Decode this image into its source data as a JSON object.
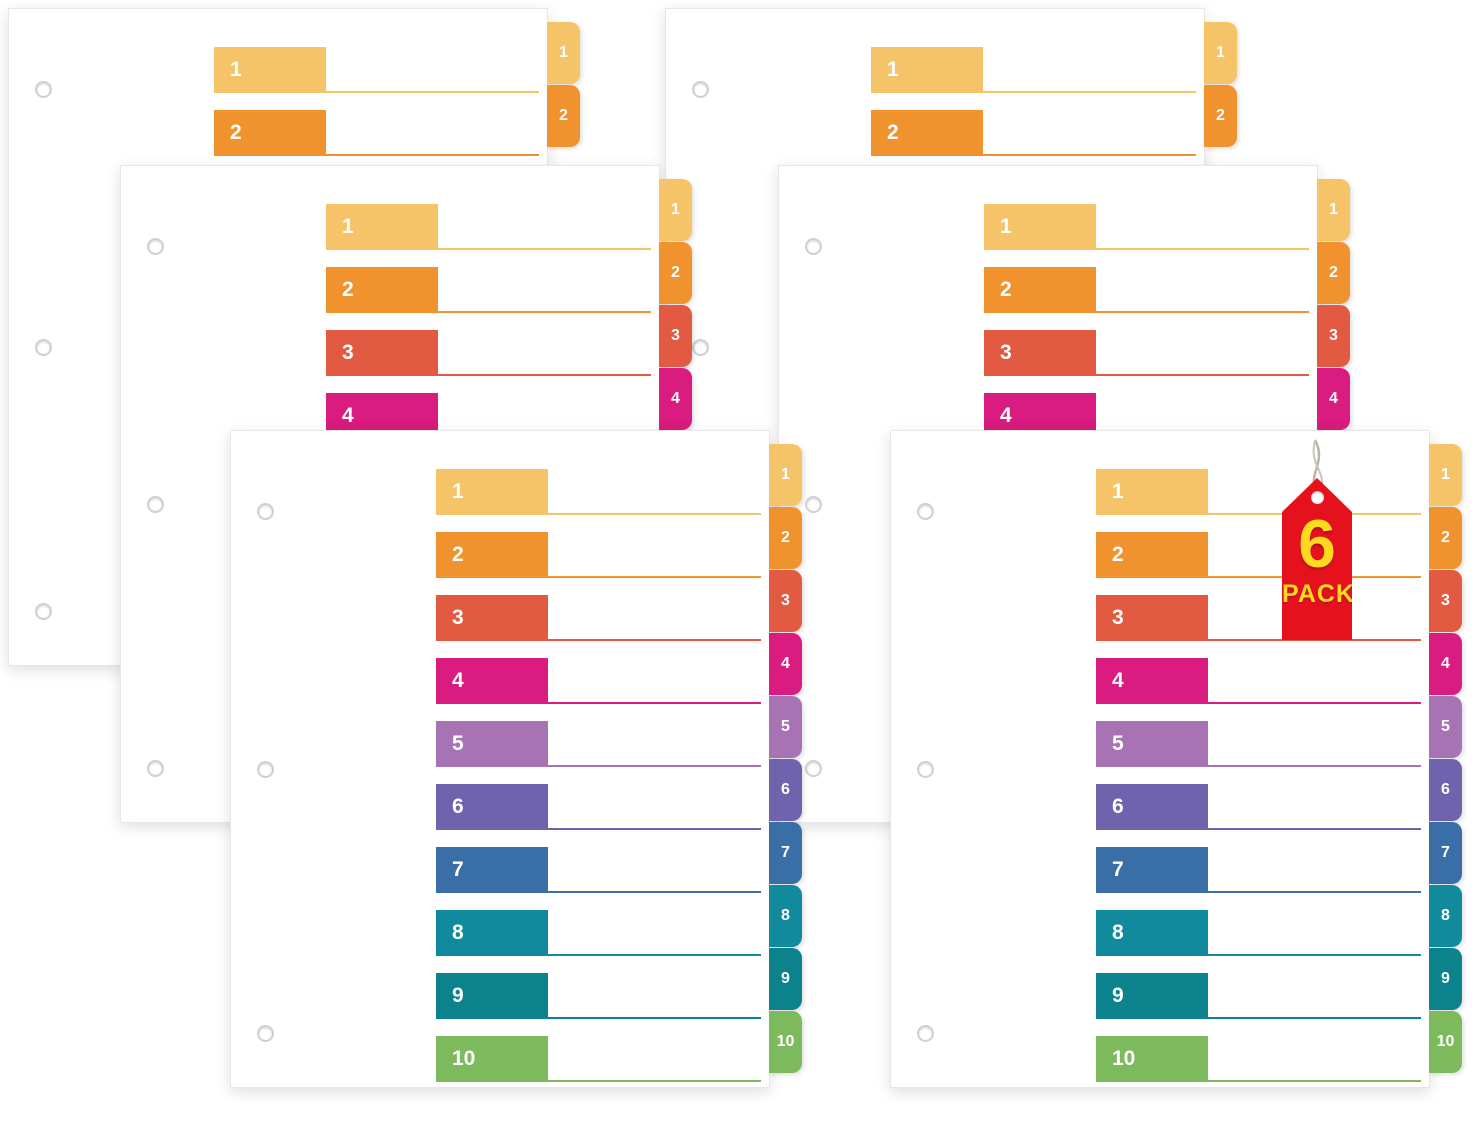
{
  "badge": {
    "number": "6",
    "label": "PACK",
    "bg": "#e5121d",
    "text_color": "#ffd91e"
  },
  "dividers": {
    "sheet_color": "#ffffff",
    "tabs": [
      {
        "number": "1",
        "color": "#f5c368"
      },
      {
        "number": "2",
        "color": "#f0922d"
      },
      {
        "number": "3",
        "color": "#e15a41"
      },
      {
        "number": "4",
        "color": "#da1b7f"
      },
      {
        "number": "5",
        "color": "#a873b4"
      },
      {
        "number": "6",
        "color": "#6f63ae"
      },
      {
        "number": "7",
        "color": "#3a6ea6"
      },
      {
        "number": "8",
        "color": "#128a9d"
      },
      {
        "number": "9",
        "color": "#0c828d"
      },
      {
        "number": "10",
        "color": "#7db95d"
      }
    ],
    "sheets": [
      {
        "id": "back-left",
        "rows_visible": 2
      },
      {
        "id": "back-right",
        "rows_visible": 2
      },
      {
        "id": "middle-left",
        "rows_visible": 4
      },
      {
        "id": "middle-right",
        "rows_visible": 4
      },
      {
        "id": "front-left",
        "rows_visible": 10
      },
      {
        "id": "front-right",
        "rows_visible": 10
      }
    ]
  }
}
